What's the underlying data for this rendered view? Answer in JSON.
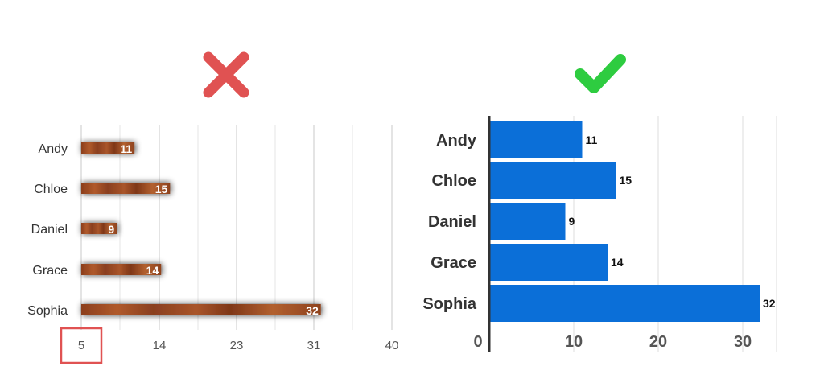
{
  "icons": {
    "bad": {
      "name": "cross-icon",
      "color": "#e05252"
    },
    "good": {
      "name": "checkmark-icon",
      "color": "#2ecc40"
    }
  },
  "highlight_color": "#e05252",
  "chart_data": [
    {
      "type": "bar",
      "orientation": "horizontal",
      "verdict": "bad",
      "categories": [
        "Andy",
        "Chloe",
        "Daniel",
        "Grace",
        "Sophia"
      ],
      "values": [
        11,
        15,
        9,
        14,
        32
      ],
      "xlim": [
        5,
        40
      ],
      "ticks": [
        "5",
        "14",
        "23",
        "31",
        "40"
      ],
      "grid": true,
      "highlighted_tick": "5",
      "bar_style": "wood texture with drop shadow",
      "bar_color": "#9a4a25"
    },
    {
      "type": "bar",
      "orientation": "horizontal",
      "verdict": "good",
      "categories": [
        "Andy",
        "Chloe",
        "Daniel",
        "Grace",
        "Sophia"
      ],
      "values": [
        11,
        15,
        9,
        14,
        32
      ],
      "xlim": [
        0,
        34
      ],
      "ticks": [
        "0",
        "10",
        "20",
        "30"
      ],
      "grid": true,
      "bar_color": "#0b6fd8"
    }
  ]
}
